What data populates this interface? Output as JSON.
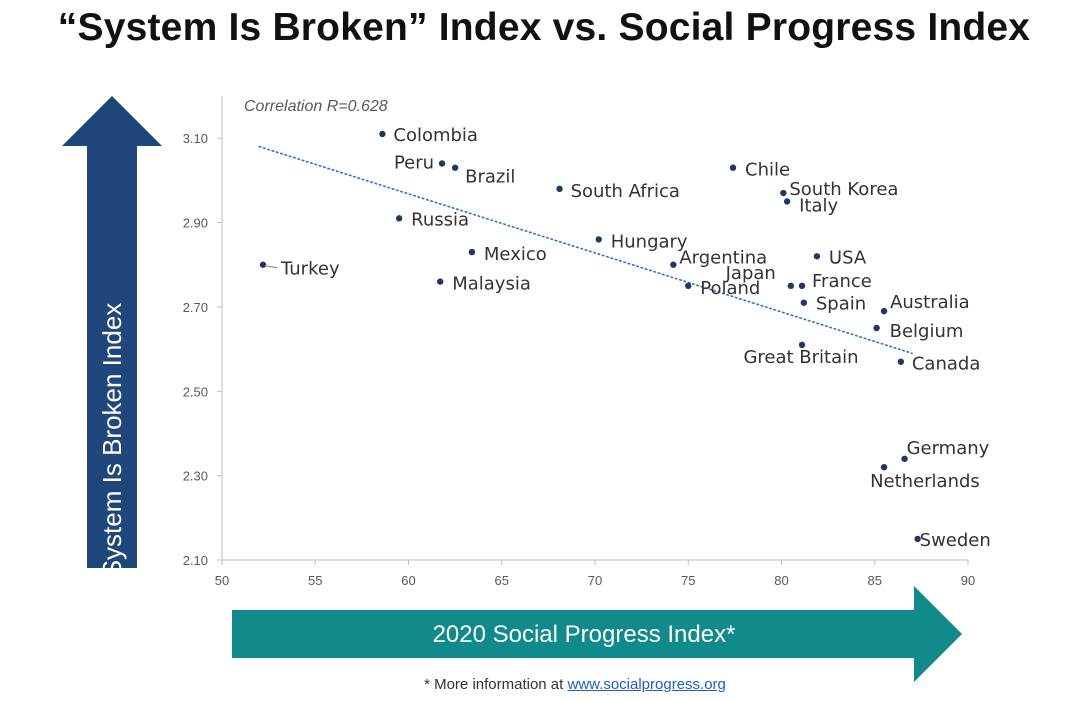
{
  "title": "“System Is Broken” Index vs. Social Progress Index",
  "colors": {
    "y_arrow": "#1f477c",
    "x_arrow": "#118a8c",
    "point": "#1f3864",
    "trendline": "#2e75b6",
    "axis_text": "#595959",
    "label_text": "#333333"
  },
  "y_arrow_label": "System Is Broken Index",
  "x_arrow_label": "2020 Social Progress Index*",
  "footnote": {
    "prefix": "* More information at ",
    "link_text": "www.socialprogress.org"
  },
  "chart_data": {
    "type": "scatter",
    "annotation": "Correlation R=0.628",
    "xlim": [
      50,
      90
    ],
    "ylim": [
      2.1,
      3.2
    ],
    "x_ticks": [
      50,
      55,
      60,
      65,
      70,
      75,
      80,
      85,
      90
    ],
    "y_ticks": [
      2.1,
      2.3,
      2.5,
      2.7,
      2.9,
      3.1
    ],
    "y_tick_labels": [
      "2.10",
      "2.30",
      "2.50",
      "2.70",
      "2.90",
      "3.10"
    ],
    "grid": false,
    "trendline": {
      "style": "dotted",
      "x": [
        52,
        87
      ],
      "y": [
        3.08,
        2.59
      ]
    },
    "points": [
      {
        "name": "Colombia",
        "x": 58.6,
        "y": 3.11
      },
      {
        "name": "Peru",
        "x": 61.8,
        "y": 3.04
      },
      {
        "name": "Brazil",
        "x": 62.5,
        "y": 3.03
      },
      {
        "name": "South Africa",
        "x": 68.1,
        "y": 2.98
      },
      {
        "name": "Chile",
        "x": 77.4,
        "y": 3.03
      },
      {
        "name": "South Korea",
        "x": 80.1,
        "y": 2.97
      },
      {
        "name": "Italy",
        "x": 80.3,
        "y": 2.95
      },
      {
        "name": "Russia",
        "x": 59.5,
        "y": 2.91
      },
      {
        "name": "Mexico",
        "x": 63.4,
        "y": 2.83
      },
      {
        "name": "Hungary",
        "x": 70.2,
        "y": 2.86
      },
      {
        "name": "Argentina",
        "x": 74.2,
        "y": 2.8
      },
      {
        "name": "USA",
        "x": 81.9,
        "y": 2.82
      },
      {
        "name": "Turkey",
        "x": 52.2,
        "y": 2.8
      },
      {
        "name": "Japan",
        "x": 80.5,
        "y": 2.75
      },
      {
        "name": "France",
        "x": 81.1,
        "y": 2.75
      },
      {
        "name": "Malaysia",
        "x": 61.7,
        "y": 2.76
      },
      {
        "name": "Poland",
        "x": 75.0,
        "y": 2.75
      },
      {
        "name": "Spain",
        "x": 81.2,
        "y": 2.71
      },
      {
        "name": "Australia",
        "x": 85.5,
        "y": 2.69
      },
      {
        "name": "Belgium",
        "x": 85.1,
        "y": 2.65
      },
      {
        "name": "Great Britain",
        "x": 81.1,
        "y": 2.61
      },
      {
        "name": "Canada",
        "x": 86.4,
        "y": 2.57
      },
      {
        "name": "Germany",
        "x": 86.6,
        "y": 2.34
      },
      {
        "name": "Netherlands",
        "x": 85.5,
        "y": 2.32
      },
      {
        "name": "Sweden",
        "x": 87.3,
        "y": 2.15
      }
    ]
  }
}
